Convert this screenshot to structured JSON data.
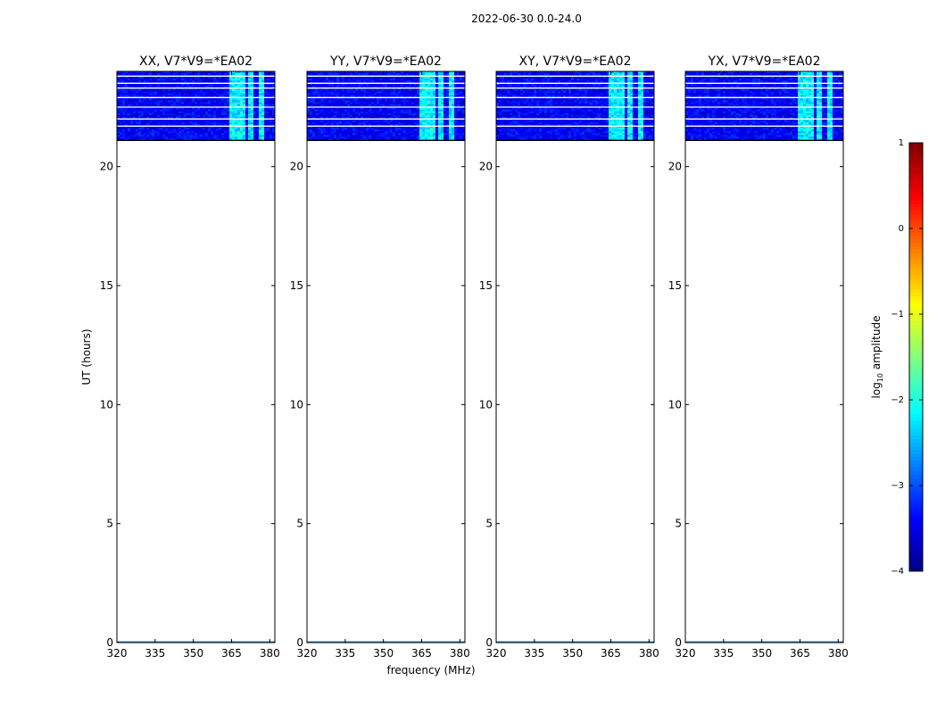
{
  "figure_title": "2022-06-30 0.0-24.0",
  "chart_data": {
    "type": "heatmap",
    "xlabel": "frequency (MHz)",
    "ylabel": "UT (hours)",
    "xlim": [
      320,
      382
    ],
    "ylim": [
      0,
      24
    ],
    "xticks": [
      320,
      335,
      350,
      365,
      380
    ],
    "yticks": [
      0,
      5,
      10,
      15,
      20
    ],
    "data_time_range_hours": [
      21.1,
      24.0
    ],
    "flagged_rows_hours": [
      21.7,
      22.0,
      22.5,
      22.9,
      23.3,
      23.5,
      23.8
    ],
    "rfi_bands_mhz": [
      [
        364,
        368
      ],
      [
        368.5,
        370.5
      ],
      [
        371,
        374
      ],
      [
        375.5,
        378
      ]
    ],
    "panels": [
      {
        "title": "XX, V7*V9=*EA02",
        "polarization": "XX"
      },
      {
        "title": "YY, V7*V9=*EA02",
        "polarization": "YY"
      },
      {
        "title": "XY, V7*V9=*EA02",
        "polarization": "XY"
      },
      {
        "title": "YX, V7*V9=*EA02",
        "polarization": "YX"
      }
    ],
    "colorbar": {
      "label": "log10 amplitude",
      "label_main": "log",
      "label_sub": "10",
      "label_rest": " amplitude",
      "range": [
        -4,
        1
      ],
      "ticks": [
        1,
        0,
        -1,
        -2,
        -3,
        -4
      ],
      "colormap": "jet",
      "background_log_amplitude": -3.4,
      "rfi_log_amplitude": -2.2
    }
  }
}
